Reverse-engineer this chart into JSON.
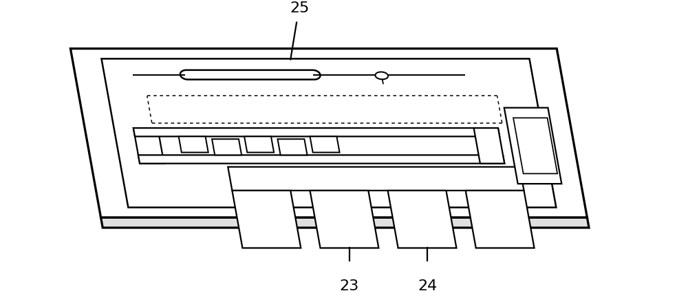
{
  "background_color": "#ffffff",
  "label_25": "25",
  "label_23": "23",
  "label_24": "24",
  "label_fontsize": 16,
  "line_color": "#000000",
  "line_width": 1.8,
  "chip_color": "#ffffff",
  "chip_edge_color": "#111111",
  "dotted_color": "#222222",
  "shear": 0.38
}
